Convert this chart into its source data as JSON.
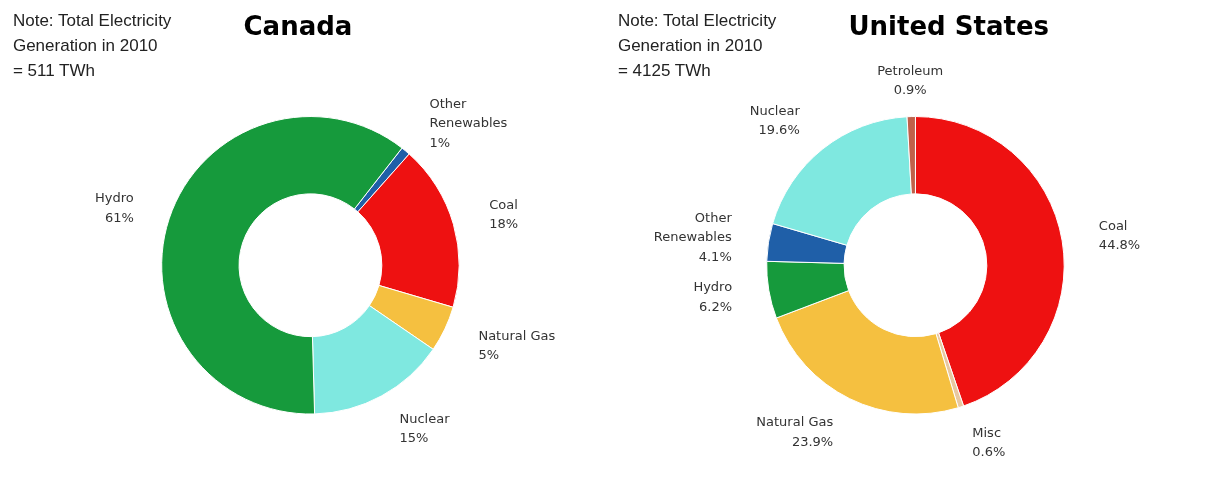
{
  "chart_data": [
    {
      "type": "donut",
      "title": "Canada",
      "annotations": [
        "Note: Total Electricity\nGeneration in 2010\n= 511 TWh"
      ],
      "categories": [
        "Other Renewables",
        "Coal",
        "Natural Gas",
        "Nuclear",
        "Hydro"
      ],
      "values": [
        1,
        18,
        5,
        15,
        61
      ],
      "colors": [
        "#1f5fa8",
        "#ee1111",
        "#f5c040",
        "#7fe8e0",
        "#169a3c"
      ],
      "value_labels": [
        "1%",
        "18%",
        "5%",
        "15%",
        "61%"
      ]
    },
    {
      "type": "donut",
      "title": "United States",
      "annotations": [
        "Note: Total Electricity\nGeneration in 2010\n= 4125 TWh"
      ],
      "categories": [
        "Coal",
        "Misc",
        "Natural Gas",
        "Hydro",
        "Other Renewables",
        "Nuclear",
        "Petroleum"
      ],
      "values": [
        44.8,
        0.6,
        23.9,
        6.2,
        4.1,
        19.6,
        0.9
      ],
      "colors": [
        "#ee1111",
        "#e8c8a0",
        "#f5c040",
        "#169a3c",
        "#1f5fa8",
        "#7fe8e0",
        "#c0604a"
      ],
      "value_labels": [
        "44.8%",
        "0.6%",
        "23.9%",
        "6.2%",
        "4.1%",
        "19.6%",
        "0.9%"
      ]
    }
  ]
}
